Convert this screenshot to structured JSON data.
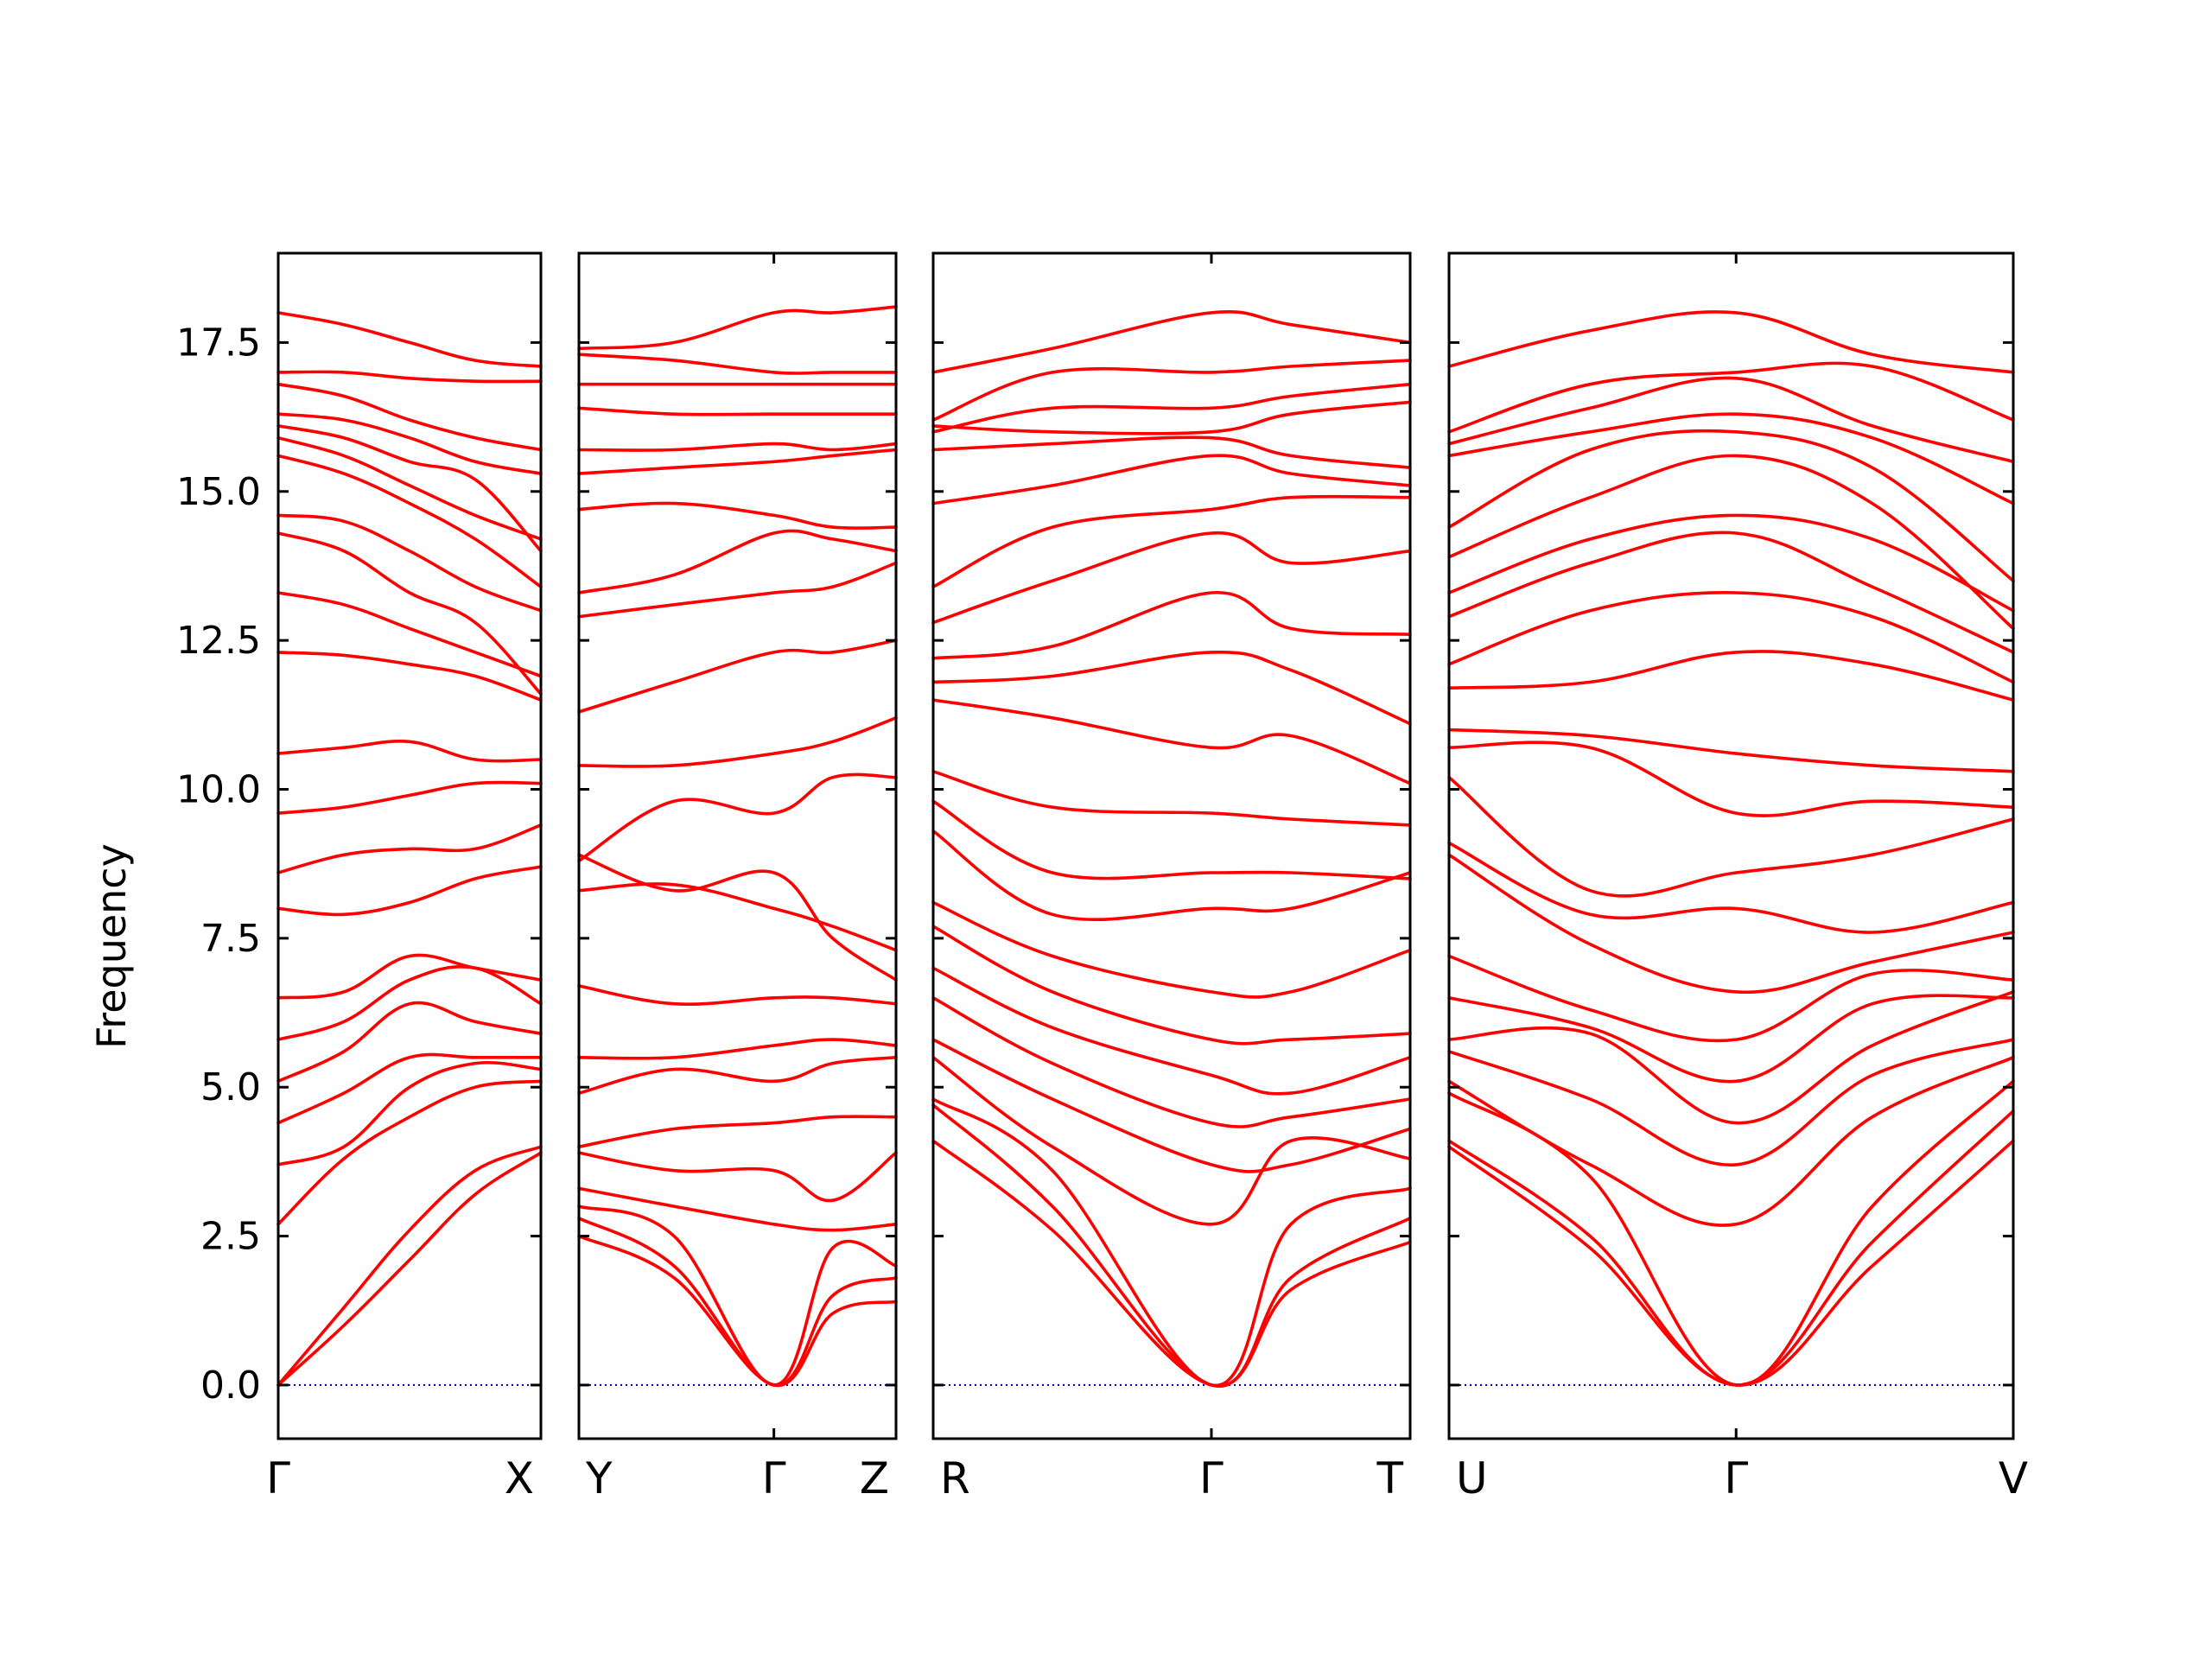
{
  "chart_data": {
    "type": "line",
    "ylabel": "Frequency",
    "ylim": [
      -0.9,
      19.0
    ],
    "yticks": [
      "0.0",
      "2.5",
      "5.0",
      "7.5",
      "10.0",
      "12.5",
      "15.0",
      "17.5"
    ],
    "yticks_values": [
      0,
      2.5,
      5,
      7.5,
      10,
      12.5,
      15,
      17.5
    ],
    "line_color": "#ff0000",
    "zero_line_color": "#0000cc",
    "grid": false,
    "segments": [
      {
        "start_label": "Γ",
        "end_label": "X",
        "mid_label": "",
        "x": [
          0,
          0.25,
          0.5,
          0.75,
          1
        ],
        "bands": [
          [
            0,
            1.3,
            2.6,
            3.6,
            4.0
          ],
          [
            0,
            1.0,
            2.1,
            3.2,
            3.9
          ],
          [
            2.7,
            3.8,
            4.5,
            5.0,
            5.1
          ],
          [
            3.7,
            4.0,
            5.0,
            5.4,
            5.3
          ],
          [
            4.4,
            4.9,
            5.5,
            5.5,
            5.5
          ],
          [
            5.1,
            5.6,
            6.4,
            6.1,
            5.9
          ],
          [
            5.8,
            6.1,
            6.8,
            7.0,
            6.4
          ],
          [
            6.5,
            6.6,
            7.2,
            7.0,
            6.8
          ],
          [
            8.0,
            7.9,
            8.1,
            8.5,
            8.7
          ],
          [
            8.6,
            8.9,
            9.0,
            9.0,
            9.4
          ],
          [
            9.6,
            9.7,
            9.9,
            10.1,
            10.1
          ],
          [
            10.6,
            10.7,
            10.8,
            10.5,
            10.5
          ],
          [
            12.3,
            12.25,
            12.1,
            11.9,
            11.5
          ],
          [
            13.3,
            13.1,
            12.7,
            12.3,
            11.9
          ],
          [
            14.3,
            14.0,
            13.3,
            12.8,
            11.6
          ],
          [
            14.6,
            14.5,
            14.0,
            13.4,
            13.0
          ],
          [
            15.6,
            15.3,
            14.8,
            14.2,
            13.4
          ],
          [
            15.9,
            15.6,
            15.1,
            14.6,
            14.2
          ],
          [
            16.1,
            15.9,
            15.5,
            15.2,
            14.0
          ],
          [
            16.3,
            16.2,
            15.9,
            15.5,
            15.3
          ],
          [
            16.8,
            16.6,
            16.2,
            15.9,
            15.7
          ],
          [
            17.0,
            17.0,
            16.9,
            16.85,
            16.85
          ],
          [
            18.0,
            17.8,
            17.5,
            17.2,
            17.1
          ]
        ]
      },
      {
        "start_label": "Y",
        "end_label": "Z",
        "mid_label": "Γ",
        "x": [
          0,
          0.3,
          0.6148,
          0.8,
          1
        ],
        "bands": [
          [
            2.5,
            1.8,
            0,
            1.2,
            1.4
          ],
          [
            2.8,
            2.0,
            0,
            1.5,
            1.8
          ],
          [
            3.0,
            2.5,
            0,
            2.3,
            2.0
          ],
          [
            3.3,
            3.0,
            2.7,
            2.6,
            2.7
          ],
          [
            3.9,
            3.6,
            3.6,
            3.1,
            3.9
          ],
          [
            4.0,
            4.3,
            4.4,
            4.5,
            4.5
          ],
          [
            4.9,
            5.3,
            5.1,
            5.4,
            5.5
          ],
          [
            5.5,
            5.5,
            5.7,
            5.8,
            5.7
          ],
          [
            6.7,
            6.4,
            6.5,
            6.5,
            6.4
          ],
          [
            8.3,
            8.4,
            8.0,
            7.7,
            7.3
          ],
          [
            8.9,
            8.3,
            8.6,
            7.5,
            6.8
          ],
          [
            8.8,
            9.8,
            9.6,
            10.2,
            10.2
          ],
          [
            10.4,
            10.4,
            10.6,
            10.8,
            11.2
          ],
          [
            11.3,
            11.8,
            12.3,
            12.3,
            12.5
          ],
          [
            12.9,
            13.1,
            13.3,
            13.4,
            13.8
          ],
          [
            13.3,
            13.6,
            14.3,
            14.2,
            14.0
          ],
          [
            14.7,
            14.8,
            14.6,
            14.4,
            14.4
          ],
          [
            15.3,
            15.4,
            15.5,
            15.6,
            15.7
          ],
          [
            15.7,
            15.7,
            15.8,
            15.7,
            15.8
          ],
          [
            16.4,
            16.3,
            16.3,
            16.3,
            16.3
          ],
          [
            16.8,
            16.8,
            16.8,
            16.8,
            16.8
          ],
          [
            17.3,
            17.2,
            17.0,
            17.0,
            17.0
          ],
          [
            17.4,
            17.5,
            18.0,
            18.0,
            18.1
          ]
        ]
      },
      {
        "start_label": "R",
        "end_label": "T",
        "mid_label": "Γ",
        "x": [
          0,
          0.25,
          0.5833,
          0.75,
          1
        ],
        "bands": [
          [
            4.1,
            2.6,
            0,
            1.6,
            2.4
          ],
          [
            4.7,
            3.0,
            0,
            1.8,
            2.8
          ],
          [
            4.8,
            3.6,
            0,
            2.7,
            3.3
          ],
          [
            5.5,
            4.0,
            2.7,
            4.1,
            3.8
          ],
          [
            5.8,
            4.8,
            3.7,
            3.7,
            4.3
          ],
          [
            6.5,
            5.4,
            4.4,
            4.5,
            4.8
          ],
          [
            7.0,
            6.0,
            5.2,
            4.9,
            5.5
          ],
          [
            7.7,
            6.6,
            5.8,
            5.8,
            5.9
          ],
          [
            8.1,
            7.2,
            6.6,
            6.6,
            7.3
          ],
          [
            9.3,
            7.9,
            8.0,
            8.0,
            8.6
          ],
          [
            9.8,
            8.6,
            8.6,
            8.6,
            8.5
          ],
          [
            10.3,
            9.7,
            9.6,
            9.5,
            9.4
          ],
          [
            11.5,
            11.2,
            10.7,
            10.9,
            10.1
          ],
          [
            11.8,
            11.9,
            12.3,
            12.0,
            11.1
          ],
          [
            12.2,
            12.4,
            13.3,
            12.7,
            12.6
          ],
          [
            12.8,
            13.5,
            14.3,
            13.8,
            14.0
          ],
          [
            13.4,
            14.4,
            14.7,
            14.9,
            14.9
          ],
          [
            14.8,
            15.1,
            15.6,
            15.3,
            15.1
          ],
          [
            15.7,
            15.8,
            15.9,
            15.6,
            15.4
          ],
          [
            16.1,
            16.0,
            16.0,
            16.3,
            16.5
          ],
          [
            16.0,
            16.4,
            16.4,
            16.6,
            16.8
          ],
          [
            16.2,
            17.0,
            17.0,
            17.1,
            17.2
          ],
          [
            17.0,
            17.4,
            18.0,
            17.8,
            17.5
          ]
        ]
      },
      {
        "start_label": "U",
        "end_label": "V",
        "mid_label": "Γ",
        "x": [
          0,
          0.25,
          0.5088,
          0.75,
          1
        ],
        "bands": [
          [
            4.0,
            2.3,
            0,
            2.0,
            4.1
          ],
          [
            4.1,
            2.5,
            0,
            2.4,
            4.6
          ],
          [
            4.9,
            3.5,
            0,
            3.0,
            5.1
          ],
          [
            5.1,
            3.7,
            2.7,
            4.5,
            5.5
          ],
          [
            5.6,
            4.8,
            3.7,
            5.2,
            5.8
          ],
          [
            5.8,
            5.9,
            4.4,
            5.7,
            6.6
          ],
          [
            6.5,
            6.0,
            5.1,
            6.4,
            6.5
          ],
          [
            7.2,
            6.3,
            5.8,
            6.9,
            6.8
          ],
          [
            8.9,
            7.4,
            6.6,
            7.1,
            7.6
          ],
          [
            9.1,
            7.9,
            8.0,
            7.6,
            8.1
          ],
          [
            10.2,
            8.3,
            8.6,
            8.9,
            9.5
          ],
          [
            10.7,
            10.7,
            9.6,
            9.8,
            9.7
          ],
          [
            11.0,
            10.9,
            10.6,
            10.4,
            10.3
          ],
          [
            11.7,
            11.8,
            12.3,
            12.1,
            11.5
          ],
          [
            12.1,
            13.0,
            13.3,
            12.9,
            11.8
          ],
          [
            12.9,
            13.8,
            14.3,
            13.4,
            12.3
          ],
          [
            13.3,
            14.2,
            14.6,
            14.2,
            13.0
          ],
          [
            13.9,
            14.9,
            15.6,
            14.8,
            12.7
          ],
          [
            14.4,
            15.7,
            16.0,
            15.4,
            13.5
          ],
          [
            15.6,
            16.0,
            16.3,
            15.9,
            14.8
          ],
          [
            15.8,
            16.4,
            16.9,
            16.1,
            15.5
          ],
          [
            16.0,
            16.8,
            17.0,
            17.1,
            16.2
          ],
          [
            17.1,
            17.7,
            18.0,
            17.3,
            17.0
          ]
        ]
      }
    ]
  }
}
